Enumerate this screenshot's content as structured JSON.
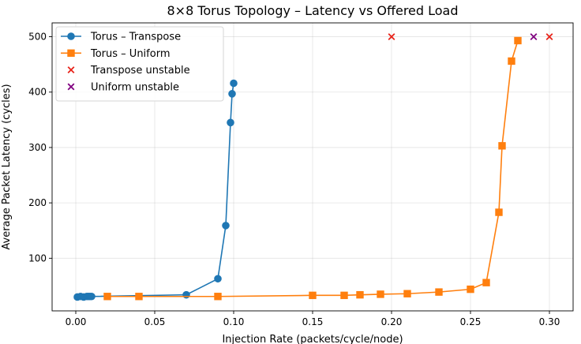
{
  "chart_data": {
    "type": "line",
    "title": "8×8 Torus Topology – Latency vs Offered Load",
    "xlabel": "Injection Rate (packets/cycle/node)",
    "ylabel": "Average Packet Latency (cycles)",
    "xlim": [
      -0.015,
      0.315
    ],
    "ylim": [
      5,
      525
    ],
    "xticks": [
      0.0,
      0.05,
      0.1,
      0.15,
      0.2,
      0.25,
      0.3
    ],
    "xtick_labels": [
      "0.00",
      "0.05",
      "0.10",
      "0.15",
      "0.20",
      "0.25",
      "0.30"
    ],
    "yticks": [
      100,
      200,
      300,
      400,
      500
    ],
    "ytick_labels": [
      "100",
      "200",
      "300",
      "400",
      "500"
    ],
    "grid": true,
    "legend_position": "top-left",
    "series": [
      {
        "name": "Torus – Transpose",
        "kind": "line",
        "marker": "circle",
        "color": "#1f77b4",
        "x": [
          0.001,
          0.003,
          0.005,
          0.007,
          0.008,
          0.009,
          0.01,
          0.07,
          0.09,
          0.095,
          0.098,
          0.099,
          0.1
        ],
        "y": [
          30,
          31,
          30,
          31,
          31,
          31,
          31,
          34,
          63,
          159,
          345,
          397,
          416
        ]
      },
      {
        "name": "Torus – Uniform",
        "kind": "line",
        "marker": "square",
        "color": "#ff7f0e",
        "x": [
          0.02,
          0.04,
          0.09,
          0.15,
          0.17,
          0.18,
          0.193,
          0.21,
          0.23,
          0.25,
          0.26,
          0.268,
          0.27,
          0.276,
          0.28
        ],
        "y": [
          31,
          31,
          31,
          33,
          33,
          34,
          35,
          36,
          39,
          44,
          56,
          183,
          303,
          456,
          493
        ]
      },
      {
        "name": "Transpose unstable",
        "kind": "scatter",
        "marker": "x",
        "color": "#e8241b",
        "x": [
          0.2,
          0.3
        ],
        "y": [
          500,
          500
        ]
      },
      {
        "name": "Uniform unstable",
        "kind": "scatter",
        "marker": "x",
        "color": "#800080",
        "x": [
          0.29
        ],
        "y": [
          500
        ]
      }
    ]
  }
}
